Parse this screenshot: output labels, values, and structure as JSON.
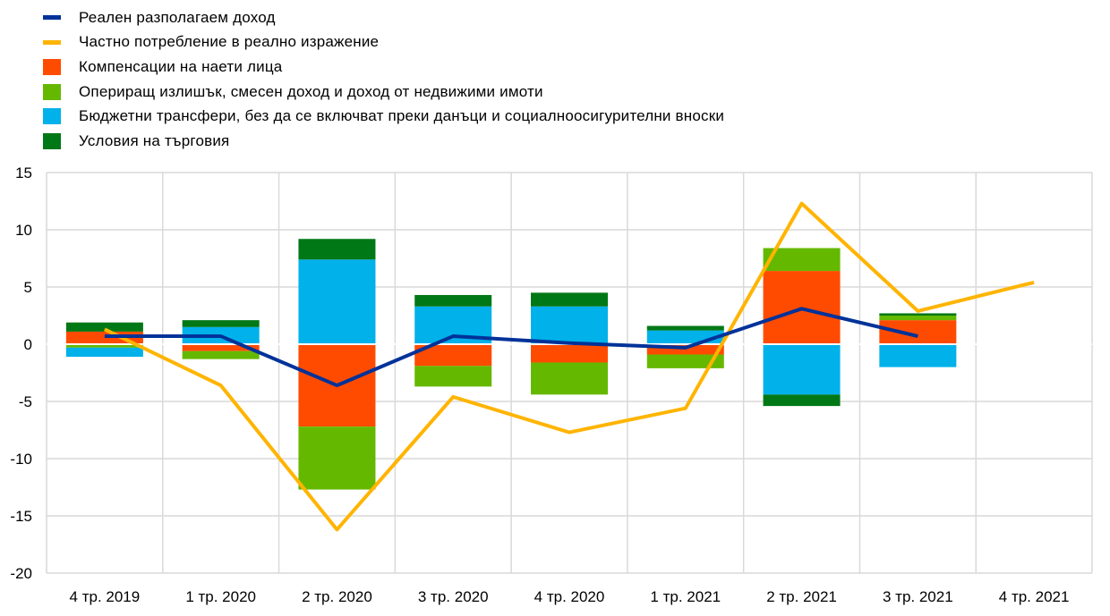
{
  "chart_data": {
    "type": "bar",
    "categories": [
      "4 тр. 2019",
      "1 тр. 2020",
      "2 тр. 2020",
      "3 тр. 2020",
      "4 тр. 2020",
      "1 тр. 2021",
      "2 тр. 2021",
      "3 тр. 2021",
      "4 тр. 2021"
    ],
    "ylim": [
      -20,
      15
    ],
    "yticks": [
      15,
      10,
      5,
      0,
      -5,
      -10,
      -15,
      -20
    ],
    "grid": true,
    "legend_position": "top-left",
    "stacked_bars": [
      {
        "name": "Компенсации на наети лица",
        "color": "#ff4b00",
        "values": [
          1.1,
          -0.6,
          -7.2,
          -1.9,
          -1.6,
          -0.9,
          6.4,
          2.1,
          null
        ]
      },
      {
        "name": "Опериращ излишък, смесен доход и доход от недвижими имоти",
        "color": "#65b800",
        "values": [
          -0.3,
          -0.7,
          -5.5,
          -1.8,
          -2.8,
          -1.2,
          2.0,
          0.4,
          null
        ]
      },
      {
        "name": "Бюджетни трансфери, без да се включват преки данъци и социалноосигурителни вноски",
        "color": "#00b1ea",
        "values": [
          -0.8,
          1.5,
          7.4,
          3.3,
          3.3,
          1.2,
          -4.4,
          -2.0,
          null
        ]
      },
      {
        "name": "Условия на търговия",
        "color": "#007816",
        "values": [
          0.8,
          0.6,
          1.8,
          1.0,
          1.2,
          0.4,
          0.0,
          0.2,
          null
        ]
      }
    ],
    "stacked_bars_neg_extra": [
      0,
      0,
      0,
      0,
      0,
      0,
      -1.0,
      0,
      0
    ],
    "lines": [
      {
        "name": "Реален разполагаем доход",
        "color": "#003299",
        "values": [
          0.7,
          0.7,
          -3.6,
          0.7,
          0.1,
          -0.3,
          3.1,
          0.7,
          null
        ]
      },
      {
        "name": "Частно потребление в реално изражение",
        "color": "#ffb400",
        "values": [
          1.3,
          -3.6,
          -16.2,
          -4.6,
          -7.7,
          -5.6,
          12.3,
          2.9,
          5.4
        ]
      }
    ]
  },
  "legend": [
    {
      "label": "Реален разполагаем доход",
      "color": "#003299",
      "kind": "line"
    },
    {
      "label": "Частно потребление в реално изражение",
      "color": "#ffb400",
      "kind": "line"
    },
    {
      "label": "Компенсации на наети лица",
      "color": "#ff4b00",
      "kind": "box"
    },
    {
      "label": "Опериращ излишък, смесен доход и доход от недвижими имоти",
      "color": "#65b800",
      "kind": "box"
    },
    {
      "label": "Бюджетни трансфери, без да се включват преки данъци и социалноосигурителни вноски",
      "color": "#00b1ea",
      "kind": "box"
    },
    {
      "label": "Условия на търговия",
      "color": "#007816",
      "kind": "box"
    }
  ]
}
